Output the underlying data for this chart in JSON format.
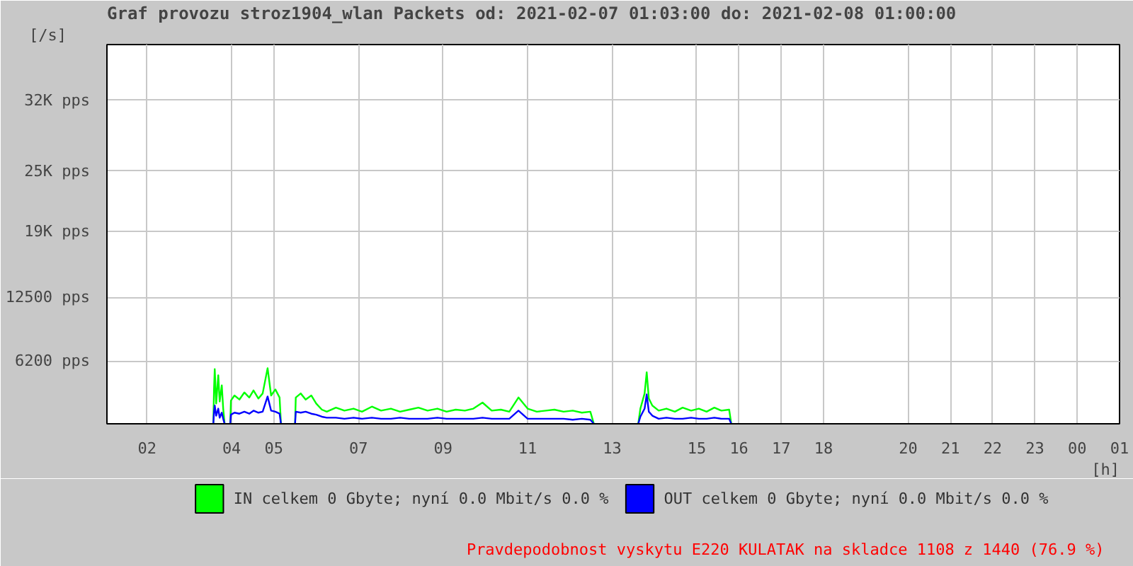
{
  "chart_data": {
    "type": "line",
    "title": "Graf provozu stroz1904_wlan Packets od: 2021-02-07 01:03:00 do: 2021-02-08 01:00:00",
    "ylabel": "[/s]",
    "xlabel": "[h]",
    "x": [
      "2021-02-07T03:34",
      "2021-02-07T03:35",
      "2021-02-07T03:36",
      "2021-02-07T03:38",
      "2021-02-07T03:41",
      "2021-02-07T03:43",
      "2021-02-07T03:46",
      "2021-02-07T03:48",
      "2021-02-07T03:50",
      "2021-02-07T03:53",
      "2021-02-07T03:58",
      "2021-02-07T03:59",
      "2021-02-07T04:04",
      "2021-02-07T04:11",
      "2021-02-07T04:18",
      "2021-02-07T04:25",
      "2021-02-07T04:31",
      "2021-02-07T04:38",
      "2021-02-07T04:44",
      "2021-02-07T04:51",
      "2021-02-07T04:56",
      "2021-02-07T05:02",
      "2021-02-07T05:08",
      "2021-02-07T05:10",
      "2021-02-07T05:13",
      "2021-02-07T05:30",
      "2021-02-07T05:31",
      "2021-02-07T05:38",
      "2021-02-07T05:45",
      "2021-02-07T05:53",
      "2021-02-07T06:00",
      "2021-02-07T06:08",
      "2021-02-07T06:15",
      "2021-02-07T06:28",
      "2021-02-07T06:40",
      "2021-02-07T06:53",
      "2021-02-07T07:05",
      "2021-02-07T07:19",
      "2021-02-07T07:32",
      "2021-02-07T07:46",
      "2021-02-07T07:59",
      "2021-02-07T08:12",
      "2021-02-07T08:25",
      "2021-02-07T08:38",
      "2021-02-07T08:52",
      "2021-02-07T09:05",
      "2021-02-07T09:18",
      "2021-02-07T09:31",
      "2021-02-07T09:43",
      "2021-02-07T09:56",
      "2021-02-07T10:09",
      "2021-02-07T10:22",
      "2021-02-07T10:34",
      "2021-02-07T10:47",
      "2021-02-07T11:00",
      "2021-02-07T11:13",
      "2021-02-07T11:26",
      "2021-02-07T11:38",
      "2021-02-07T11:51",
      "2021-02-07T12:04",
      "2021-02-07T12:17",
      "2021-02-07T12:29",
      "2021-02-07T12:34",
      "2021-02-07T12:42",
      "2021-02-07T13:37",
      "2021-02-07T13:40",
      "2021-02-07T13:46",
      "2021-02-07T13:49",
      "2021-02-07T13:52",
      "2021-02-07T13:57",
      "2021-02-07T14:06",
      "2021-02-07T14:17",
      "2021-02-07T14:29",
      "2021-02-07T14:40",
      "2021-02-07T14:52",
      "2021-02-07T15:03",
      "2021-02-07T15:14",
      "2021-02-07T15:25",
      "2021-02-07T15:35",
      "2021-02-07T15:46",
      "2021-02-07T15:49"
    ],
    "series": [
      {
        "name": "IN celkem 0 Gbyte; nyní   0.0 Mbit/s 0.0 %",
        "color": "#00ff00",
        "values": [
          0,
          3500,
          5400,
          2000,
          4800,
          2200,
          3800,
          1500,
          0,
          null,
          0,
          2300,
          2800,
          2400,
          3100,
          2600,
          3300,
          2500,
          3000,
          5500,
          2800,
          3400,
          2600,
          0,
          null,
          0,
          2600,
          3000,
          2400,
          2800,
          2000,
          1400,
          1200,
          1600,
          1300,
          1500,
          1200,
          1700,
          1300,
          1500,
          1200,
          1400,
          1600,
          1300,
          1500,
          1200,
          1400,
          1300,
          1500,
          2100,
          1300,
          1400,
          1200,
          2600,
          1500,
          1200,
          1300,
          1400,
          1200,
          1300,
          1100,
          1200,
          0,
          null,
          0,
          1500,
          3000,
          5100,
          2500,
          1800,
          1300,
          1500,
          1200,
          1600,
          1300,
          1500,
          1200,
          1600,
          1300,
          1400,
          0
        ]
      },
      {
        "name": "OUT celkem 0 Gbyte; nyní   0.0 Mbit/s 0.0 %",
        "color": "#0000ff",
        "values": [
          0,
          1200,
          1800,
          800,
          1500,
          600,
          1100,
          500,
          0,
          null,
          0,
          900,
          1100,
          1000,
          1200,
          1000,
          1300,
          1100,
          1200,
          2700,
          1300,
          1200,
          1000,
          0,
          null,
          0,
          1200,
          1100,
          1200,
          1000,
          900,
          700,
          600,
          600,
          500,
          600,
          500,
          600,
          500,
          500,
          600,
          500,
          500,
          500,
          600,
          500,
          500,
          500,
          500,
          600,
          500,
          500,
          500,
          1300,
          500,
          500,
          500,
          500,
          500,
          400,
          500,
          400,
          0,
          null,
          0,
          700,
          1500,
          2900,
          1200,
          800,
          500,
          600,
          500,
          500,
          600,
          500,
          500,
          600,
          500,
          500,
          0
        ]
      }
    ],
    "xlim": [
      "2021-02-07T01:03",
      "2021-02-08T01:00"
    ],
    "xticks": [
      {
        "value": "2021-02-07T02:00",
        "label": "02"
      },
      {
        "value": "2021-02-07T04:00",
        "label": "04"
      },
      {
        "value": "2021-02-07T05:00",
        "label": "05"
      },
      {
        "value": "2021-02-07T07:00",
        "label": "07"
      },
      {
        "value": "2021-02-07T09:00",
        "label": "09"
      },
      {
        "value": "2021-02-07T11:00",
        "label": "11"
      },
      {
        "value": "2021-02-07T13:00",
        "label": "13"
      },
      {
        "value": "2021-02-07T15:00",
        "label": "15"
      },
      {
        "value": "2021-02-07T16:00",
        "label": "16"
      },
      {
        "value": "2021-02-07T17:00",
        "label": "17"
      },
      {
        "value": "2021-02-07T18:00",
        "label": "18"
      },
      {
        "value": "2021-02-07T20:00",
        "label": "20"
      },
      {
        "value": "2021-02-07T21:00",
        "label": "21"
      },
      {
        "value": "2021-02-07T22:00",
        "label": "22"
      },
      {
        "value": "2021-02-07T23:00",
        "label": "23"
      },
      {
        "value": "2021-02-08T00:00",
        "label": "00"
      },
      {
        "value": "2021-02-08T01:00",
        "label": "01"
      }
    ],
    "ylim": [
      0,
      37500
    ],
    "yticks": [
      {
        "value": 6200,
        "label": "6200 pps"
      },
      {
        "value": 12500,
        "label": "12500 pps"
      },
      {
        "value": 19000,
        "label": "19K pps"
      },
      {
        "value": 25000,
        "label": "25K pps"
      },
      {
        "value": 32000,
        "label": "32K pps"
      }
    ],
    "grid": true,
    "legend": "bottom",
    "line_style": "solid",
    "annotations": [
      "Pravdepodobnost vyskytu E220 KULATAK na skladce 1108 z 1440 (76.9 %)"
    ]
  }
}
